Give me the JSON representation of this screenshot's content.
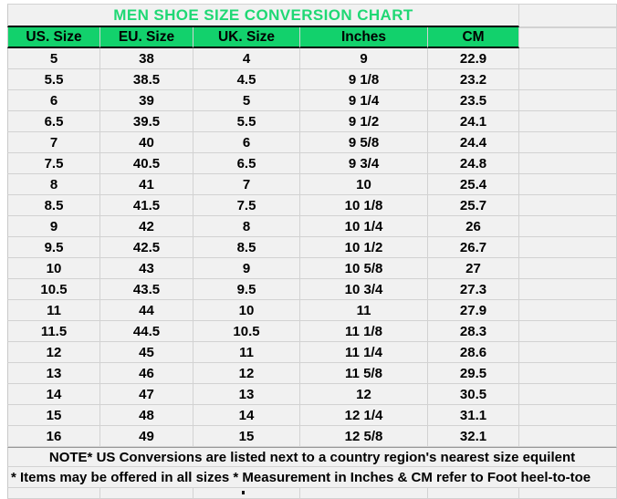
{
  "chart_data": {
    "type": "table",
    "title": "MEN SHOE SIZE CONVERSION CHART",
    "columns": [
      "US. Size",
      "EU. Size",
      "UK. Size",
      "Inches",
      "CM"
    ],
    "rows": [
      [
        "5",
        "38",
        "4",
        "9",
        "22.9"
      ],
      [
        "5.5",
        "38.5",
        "4.5",
        "9 1/8",
        "23.2"
      ],
      [
        "6",
        "39",
        "5",
        "9 1/4",
        "23.5"
      ],
      [
        "6.5",
        "39.5",
        "5.5",
        "9 1/2",
        "24.1"
      ],
      [
        "7",
        "40",
        "6",
        "9 5/8",
        "24.4"
      ],
      [
        "7.5",
        "40.5",
        "6.5",
        "9 3/4",
        "24.8"
      ],
      [
        "8",
        "41",
        "7",
        "10",
        "25.4"
      ],
      [
        "8.5",
        "41.5",
        "7.5",
        "10 1/8",
        "25.7"
      ],
      [
        "9",
        "42",
        "8",
        "10 1/4",
        "26"
      ],
      [
        "9.5",
        "42.5",
        "8.5",
        "10 1/2",
        "26.7"
      ],
      [
        "10",
        "43",
        "9",
        "10 5/8",
        "27"
      ],
      [
        "10.5",
        "43.5",
        "9.5",
        "10 3/4",
        "27.3"
      ],
      [
        "11",
        "44",
        "10",
        "11",
        "27.9"
      ],
      [
        "11.5",
        "44.5",
        "10.5",
        "11 1/8",
        "28.3"
      ],
      [
        "12",
        "45",
        "11",
        "11 1/4",
        "28.6"
      ],
      [
        "13",
        "46",
        "12",
        "11 5/8",
        "29.5"
      ],
      [
        "14",
        "47",
        "13",
        "12",
        "30.5"
      ],
      [
        "15",
        "48",
        "14",
        "12 1/4",
        "31.1"
      ],
      [
        "16",
        "49",
        "15",
        "12 5/8",
        "32.1"
      ]
    ],
    "notes": [
      "NOTE* US Conversions are listed next to a country region's nearest size equilent",
      "* Items may be offered in all sizes * Measurement in Inches & CM refer to Foot heel-to-toe"
    ],
    "layout_hints": {
      "grid": true,
      "header_position": "top"
    }
  },
  "colors": {
    "header_bg": "#12d16c",
    "title_text": "#1fd874",
    "cell_bg": "#f1f1f1",
    "grid_line": "#d2d2d2",
    "header_border": "#000000",
    "text": "#000000"
  }
}
